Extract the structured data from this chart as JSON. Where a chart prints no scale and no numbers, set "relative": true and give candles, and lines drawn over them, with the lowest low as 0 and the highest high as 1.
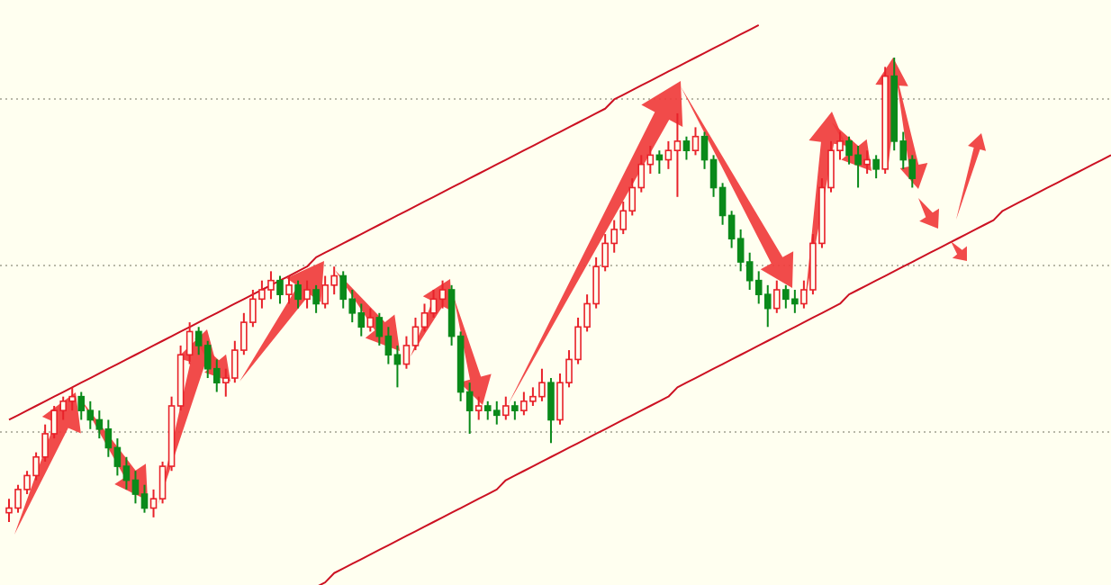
{
  "chart_data": {
    "type": "candlestick",
    "relative": true,
    "grid": true,
    "categories": [
      null,
      null,
      null,
      null,
      null,
      null,
      null,
      null,
      null,
      null,
      null,
      null,
      null,
      null,
      null,
      null,
      null,
      null,
      null,
      null,
      null,
      null,
      null,
      null,
      null,
      null,
      null,
      null,
      null,
      null,
      null,
      null,
      null,
      null,
      null,
      null,
      null,
      null,
      null,
      null,
      null,
      null,
      null,
      null,
      null,
      null,
      null,
      null,
      null,
      null,
      null,
      null,
      null,
      null,
      null,
      null,
      null,
      null,
      null,
      null,
      null,
      null,
      null,
      null,
      null,
      null,
      null,
      null,
      null,
      null,
      null,
      null,
      null,
      null,
      null,
      null,
      null,
      null,
      null,
      null,
      null,
      null,
      null,
      null,
      null,
      null,
      null,
      null,
      null,
      null,
      null,
      null,
      null,
      null,
      null,
      null,
      null,
      null,
      null,
      null,
      null,
      null,
      null,
      null,
      null,
      null,
      null,
      null,
      null,
      null,
      null,
      null,
      null,
      null,
      null,
      null,
      null,
      null,
      null,
      null,
      null,
      null,
      null
    ],
    "ohlc": [
      [
        0.02,
        0.05,
        0.0,
        0.03
      ],
      [
        0.03,
        0.08,
        0.02,
        0.07
      ],
      [
        0.07,
        0.11,
        0.06,
        0.1
      ],
      [
        0.1,
        0.15,
        0.09,
        0.14
      ],
      [
        0.14,
        0.21,
        0.13,
        0.19
      ],
      [
        0.19,
        0.25,
        0.18,
        0.24
      ],
      [
        0.24,
        0.27,
        0.22,
        0.26
      ],
      [
        0.26,
        0.29,
        0.24,
        0.27
      ],
      [
        0.27,
        0.28,
        0.22,
        0.24
      ],
      [
        0.24,
        0.26,
        0.2,
        0.22
      ],
      [
        0.22,
        0.24,
        0.18,
        0.2
      ],
      [
        0.2,
        0.22,
        0.14,
        0.16
      ],
      [
        0.16,
        0.18,
        0.1,
        0.12
      ],
      [
        0.12,
        0.14,
        0.07,
        0.09
      ],
      [
        0.09,
        0.11,
        0.04,
        0.06
      ],
      [
        0.06,
        0.08,
        0.02,
        0.03
      ],
      [
        0.03,
        0.07,
        0.01,
        0.05
      ],
      [
        0.05,
        0.13,
        0.04,
        0.12
      ],
      [
        0.12,
        0.27,
        0.11,
        0.25
      ],
      [
        0.25,
        0.38,
        0.24,
        0.36
      ],
      [
        0.36,
        0.43,
        0.34,
        0.41
      ],
      [
        0.41,
        0.42,
        0.36,
        0.38
      ],
      [
        0.38,
        0.39,
        0.31,
        0.33
      ],
      [
        0.33,
        0.35,
        0.28,
        0.3
      ],
      [
        0.3,
        0.33,
        0.27,
        0.31
      ],
      [
        0.31,
        0.39,
        0.3,
        0.37
      ],
      [
        0.37,
        0.45,
        0.36,
        0.43
      ],
      [
        0.43,
        0.5,
        0.42,
        0.48
      ],
      [
        0.48,
        0.52,
        0.46,
        0.5
      ],
      [
        0.5,
        0.54,
        0.48,
        0.52
      ],
      [
        0.52,
        0.53,
        0.47,
        0.49
      ],
      [
        0.49,
        0.53,
        0.47,
        0.51
      ],
      [
        0.51,
        0.52,
        0.46,
        0.48
      ],
      [
        0.48,
        0.52,
        0.46,
        0.5
      ],
      [
        0.5,
        0.51,
        0.45,
        0.47
      ],
      [
        0.47,
        0.53,
        0.46,
        0.51
      ],
      [
        0.51,
        0.55,
        0.49,
        0.53
      ],
      [
        0.53,
        0.54,
        0.46,
        0.48
      ],
      [
        0.48,
        0.5,
        0.43,
        0.45
      ],
      [
        0.45,
        0.47,
        0.4,
        0.42
      ],
      [
        0.42,
        0.46,
        0.41,
        0.44
      ],
      [
        0.44,
        0.45,
        0.38,
        0.4
      ],
      [
        0.4,
        0.42,
        0.34,
        0.36
      ],
      [
        0.36,
        0.38,
        0.29,
        0.34
      ],
      [
        0.34,
        0.4,
        0.33,
        0.38
      ],
      [
        0.38,
        0.44,
        0.37,
        0.42
      ],
      [
        0.42,
        0.47,
        0.41,
        0.45
      ],
      [
        0.45,
        0.5,
        0.44,
        0.48
      ],
      [
        0.48,
        0.52,
        0.46,
        0.5
      ],
      [
        0.5,
        0.51,
        0.38,
        0.4
      ],
      [
        0.4,
        0.41,
        0.26,
        0.28
      ],
      [
        0.28,
        0.3,
        0.19,
        0.24
      ],
      [
        0.24,
        0.27,
        0.22,
        0.25
      ],
      [
        0.25,
        0.26,
        0.22,
        0.24
      ],
      [
        0.24,
        0.26,
        0.21,
        0.23
      ],
      [
        0.23,
        0.27,
        0.22,
        0.25
      ],
      [
        0.25,
        0.26,
        0.22,
        0.24
      ],
      [
        0.24,
        0.28,
        0.23,
        0.26
      ],
      [
        0.26,
        0.29,
        0.25,
        0.27
      ],
      [
        0.27,
        0.33,
        0.26,
        0.3
      ],
      [
        0.3,
        0.31,
        0.17,
        0.22
      ],
      [
        0.22,
        0.32,
        0.21,
        0.3
      ],
      [
        0.3,
        0.37,
        0.29,
        0.35
      ],
      [
        0.35,
        0.44,
        0.34,
        0.42
      ],
      [
        0.42,
        0.49,
        0.41,
        0.47
      ],
      [
        0.47,
        0.57,
        0.46,
        0.55
      ],
      [
        0.55,
        0.62,
        0.54,
        0.6
      ],
      [
        0.6,
        0.65,
        0.58,
        0.63
      ],
      [
        0.63,
        0.69,
        0.62,
        0.67
      ],
      [
        0.67,
        0.74,
        0.66,
        0.72
      ],
      [
        0.72,
        0.79,
        0.71,
        0.77
      ],
      [
        0.77,
        0.81,
        0.75,
        0.79
      ],
      [
        0.79,
        0.8,
        0.75,
        0.78
      ],
      [
        0.78,
        0.82,
        0.76,
        0.8
      ],
      [
        0.8,
        0.88,
        0.7,
        0.82
      ],
      [
        0.82,
        0.83,
        0.78,
        0.8
      ],
      [
        0.8,
        0.85,
        0.79,
        0.83
      ],
      [
        0.83,
        0.84,
        0.76,
        0.78
      ],
      [
        0.78,
        0.79,
        0.7,
        0.72
      ],
      [
        0.72,
        0.73,
        0.64,
        0.66
      ],
      [
        0.66,
        0.67,
        0.59,
        0.61
      ],
      [
        0.61,
        0.63,
        0.54,
        0.56
      ],
      [
        0.56,
        0.58,
        0.5,
        0.52
      ],
      [
        0.52,
        0.54,
        0.47,
        0.49
      ],
      [
        0.49,
        0.51,
        0.42,
        0.46
      ],
      [
        0.46,
        0.52,
        0.45,
        0.5
      ],
      [
        0.5,
        0.51,
        0.46,
        0.48
      ],
      [
        0.48,
        0.5,
        0.45,
        0.47
      ],
      [
        0.47,
        0.52,
        0.46,
        0.5
      ],
      [
        0.5,
        0.62,
        0.49,
        0.6
      ],
      [
        0.6,
        0.74,
        0.59,
        0.72
      ],
      [
        0.72,
        0.82,
        0.71,
        0.8
      ],
      [
        0.8,
        0.84,
        0.78,
        0.82
      ],
      [
        0.82,
        0.83,
        0.77,
        0.79
      ],
      [
        0.79,
        0.81,
        0.72,
        0.77
      ],
      [
        0.77,
        0.8,
        0.75,
        0.78
      ],
      [
        0.78,
        0.79,
        0.74,
        0.76
      ],
      [
        0.76,
        0.98,
        0.75,
        0.96
      ],
      [
        0.96,
        1.0,
        0.8,
        0.82
      ],
      [
        0.82,
        0.84,
        0.76,
        0.78
      ],
      [
        0.78,
        0.79,
        0.72,
        0.74
      ],
      null,
      null,
      null,
      null,
      null,
      null,
      null,
      null,
      null,
      null,
      null,
      null,
      null,
      null,
      null,
      null,
      null,
      null,
      null,
      null,
      null,
      null
    ],
    "series": [
      {
        "type": "line",
        "color": "#cc1122",
        "values": [
          0.22,
          0.23,
          0.24,
          0.25,
          0.26,
          0.27,
          0.28,
          0.29,
          0.3,
          0.31,
          0.32,
          0.33,
          0.34,
          0.35,
          0.36,
          0.37,
          0.38,
          0.39,
          0.4,
          0.41,
          0.42,
          0.43,
          0.44,
          0.45,
          0.46,
          0.47,
          0.48,
          0.49,
          0.5,
          0.51,
          0.52,
          0.53,
          0.54,
          0.55,
          0.57,
          0.58,
          0.59,
          0.6,
          0.61,
          0.62,
          0.63,
          0.64,
          0.65,
          0.66,
          0.67,
          0.68,
          0.69,
          0.7,
          0.71,
          0.72,
          0.73,
          0.74,
          0.75,
          0.76,
          0.77,
          0.78,
          0.79,
          0.8,
          0.81,
          0.82,
          0.83,
          0.84,
          0.85,
          0.86,
          0.87,
          0.88,
          0.89,
          0.91,
          0.92,
          0.93,
          0.94,
          0.95,
          0.96,
          0.97,
          0.98,
          0.99,
          1.0,
          1.01,
          1.02,
          1.03,
          1.04,
          1.05,
          1.06,
          1.07,
          null,
          null,
          null,
          null,
          null,
          null,
          null,
          null,
          null,
          null,
          null,
          null,
          null,
          null,
          null,
          null,
          null,
          null,
          null,
          null,
          null,
          null,
          null,
          null,
          null,
          null,
          null,
          null,
          null,
          null,
          null,
          null,
          null,
          null,
          null,
          null,
          null,
          null,
          null
        ]
      },
      {
        "type": "line",
        "color": "#cc1122",
        "values": [
          null,
          null,
          null,
          null,
          null,
          null,
          null,
          null,
          null,
          null,
          null,
          null,
          null,
          null,
          null,
          null,
          null,
          null,
          null,
          null,
          null,
          null,
          null,
          null,
          null,
          null,
          null,
          null,
          null,
          null,
          null,
          null,
          null,
          null,
          -0.14,
          -0.13,
          -0.11,
          -0.1,
          -0.09,
          -0.08,
          -0.07,
          -0.06,
          -0.05,
          -0.04,
          -0.03,
          -0.02,
          -0.01,
          0.0,
          0.01,
          0.02,
          0.03,
          0.04,
          0.05,
          0.06,
          0.07,
          0.09,
          0.1,
          0.11,
          0.12,
          0.13,
          0.14,
          0.15,
          0.16,
          0.17,
          0.18,
          0.19,
          0.2,
          0.21,
          0.22,
          0.23,
          0.24,
          0.25,
          0.26,
          0.27,
          0.29,
          0.3,
          0.31,
          0.32,
          0.33,
          0.34,
          0.35,
          0.36,
          0.37,
          0.38,
          0.39,
          0.4,
          0.41,
          0.42,
          0.43,
          0.44,
          0.45,
          0.46,
          0.47,
          0.49,
          0.5,
          0.51,
          0.52,
          0.53,
          0.54,
          0.55,
          0.56,
          0.57,
          0.58,
          0.59,
          0.6,
          0.61,
          0.62,
          0.63,
          0.64,
          0.65,
          0.67,
          0.68,
          0.69,
          0.7,
          0.71,
          0.72,
          0.73,
          0.74,
          0.75,
          0.76,
          0.77,
          0.78,
          0.79
        ]
      }
    ]
  }
}
